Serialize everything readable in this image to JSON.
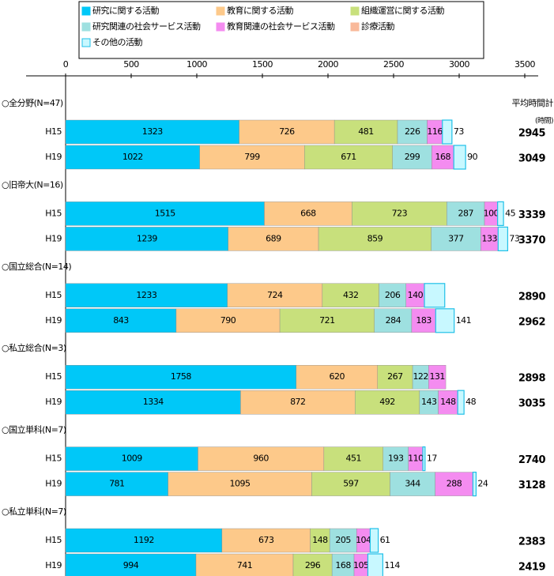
{
  "chart_data": {
    "type": "stacked_barh",
    "legend": "top",
    "groups": [
      "○全分野(N=47)",
      "○旧帝大(N=16)",
      "○国立総合(N=14)",
      "○私立総合(N=3)",
      "○国立単科(N=7)",
      "○私立単科(N=7)"
    ],
    "categories": [
      "H15",
      "H19",
      "H15",
      "H19",
      "H15",
      "H19",
      "H15",
      "H19",
      "H15",
      "H19",
      "H15",
      "H19"
    ],
    "xlim": [
      0,
      3500
    ],
    "xticks": [
      0,
      500,
      1000,
      1500,
      2000,
      2500,
      3000,
      3500
    ],
    "totals_title": "平均時間計",
    "totals_unit": "(時間)",
    "totals": [
      2945,
      3049,
      3339,
      3370,
      2890,
      2962,
      2898,
      3035,
      2740,
      3128,
      2383,
      2419
    ],
    "series": [
      {
        "name": "研究に関する活動",
        "color": "#00c8f8",
        "values": [
          1323,
          1022,
          1515,
          1239,
          1233,
          843,
          1758,
          1334,
          1009,
          781,
          1192,
          994
        ]
      },
      {
        "name": "教育に関する活動",
        "color": "#fdc98a",
        "values": [
          726,
          799,
          668,
          689,
          724,
          790,
          620,
          872,
          960,
          1095,
          673,
          741
        ]
      },
      {
        "name": "組織運営に関する活動",
        "color": "#c8e07c",
        "values": [
          481,
          671,
          723,
          859,
          432,
          721,
          267,
          492,
          451,
          597,
          148,
          296
        ]
      },
      {
        "name": "研究関連の社会サービス活動",
        "color": "#9ee0e0",
        "values": [
          226,
          299,
          287,
          377,
          206,
          284,
          122,
          143,
          193,
          344,
          205,
          168
        ]
      },
      {
        "name": "教育関連の社会サービス活動",
        "color": "#f48cf0",
        "values": [
          116,
          168,
          100,
          133,
          140,
          183,
          131,
          148,
          110,
          288,
          104,
          105
        ]
      },
      {
        "name": "診療活動",
        "color": "#f9b99a",
        "values": [
          null,
          null,
          null,
          null,
          null,
          null,
          null,
          null,
          null,
          null,
          null,
          null
        ]
      },
      {
        "name": "その他の活動",
        "color": "#c8f8ff",
        "values": [
          73,
          90,
          45,
          73,
          155,
          141,
          null,
          48,
          17,
          24,
          61,
          114
        ],
        "value_labels": [
          "73",
          "90",
          "45",
          "73",
          null,
          "141",
          null,
          "48",
          "17",
          "24",
          "61",
          "114"
        ]
      }
    ]
  }
}
